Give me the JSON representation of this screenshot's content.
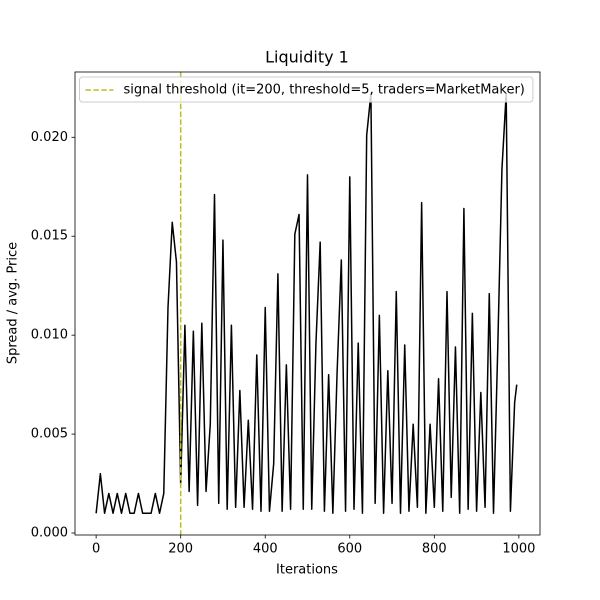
{
  "chart_data": {
    "type": "line",
    "title": "Liquidity 1",
    "xlabel": "Iterations",
    "ylabel": "Spread / avg. Price",
    "x": [
      0,
      10,
      20,
      30,
      40,
      50,
      60,
      70,
      80,
      90,
      100,
      110,
      120,
      130,
      140,
      150,
      160,
      170,
      180,
      190,
      200,
      210,
      220,
      230,
      240,
      250,
      260,
      270,
      280,
      290,
      300,
      310,
      320,
      330,
      340,
      350,
      360,
      370,
      380,
      390,
      400,
      410,
      420,
      430,
      440,
      450,
      460,
      470,
      480,
      490,
      500,
      510,
      520,
      530,
      540,
      550,
      560,
      570,
      580,
      590,
      600,
      610,
      620,
      630,
      640,
      650,
      660,
      670,
      680,
      690,
      700,
      710,
      720,
      730,
      740,
      750,
      760,
      770,
      780,
      790,
      800,
      810,
      820,
      830,
      840,
      850,
      860,
      870,
      880,
      890,
      900,
      910,
      920,
      930,
      940,
      950,
      960,
      970,
      980,
      990,
      995
    ],
    "series": [
      {
        "color": "#000000",
        "values": [
          0.001,
          0.003,
          0.001,
          0.002,
          0.001,
          0.002,
          0.001,
          0.002,
          0.001,
          0.001,
          0.002,
          0.001,
          0.001,
          0.001,
          0.002,
          0.001,
          0.002,
          0.0114,
          0.0157,
          0.0137,
          0.0025,
          0.0105,
          0.0021,
          0.0102,
          0.0014,
          0.0106,
          0.0021,
          0.0055,
          0.0171,
          0.0015,
          0.0148,
          0.0012,
          0.0105,
          0.0013,
          0.0072,
          0.0013,
          0.0057,
          0.0012,
          0.009,
          0.0011,
          0.0114,
          0.0011,
          0.0035,
          0.0131,
          0.0011,
          0.0085,
          0.0012,
          0.0151,
          0.0161,
          0.0012,
          0.0181,
          0.0012,
          0.0096,
          0.0147,
          0.0011,
          0.008,
          0.001,
          0.0081,
          0.0138,
          0.0011,
          0.018,
          0.0012,
          0.0096,
          0.001,
          0.0201,
          0.0222,
          0.0015,
          0.011,
          0.001,
          0.0082,
          0.0015,
          0.0122,
          0.001,
          0.0095,
          0.0011,
          0.0055,
          0.0013,
          0.0167,
          0.001,
          0.0055,
          0.0013,
          0.0078,
          0.0011,
          0.0122,
          0.0018,
          0.0094,
          0.001,
          0.0164,
          0.0012,
          0.0111,
          0.0011,
          0.0071,
          0.0013,
          0.0121,
          0.001,
          0.0093,
          0.0184,
          0.0222,
          0.0011,
          0.0066,
          0.0075
        ]
      }
    ],
    "vlines": [
      {
        "x": 200,
        "name": "signal threshold (it=200, threshold=5, traders=MarketMaker)",
        "color": "#bcbd22",
        "style": "dashed"
      }
    ],
    "legend": "upper left",
    "xlim": [
      -50,
      1050
    ],
    "xticks": [
      0,
      200,
      400,
      600,
      800,
      1000
    ],
    "ylim": [
      -0.0001,
      0.0233
    ],
    "yticks": [
      {
        "value": 0,
        "label": "0.000"
      },
      {
        "value": 0.005,
        "label": "0.005"
      },
      {
        "value": 0.01,
        "label": "0.010"
      },
      {
        "value": 0.015,
        "label": "0.015"
      },
      {
        "value": 0.02,
        "label": "0.020"
      }
    ]
  }
}
